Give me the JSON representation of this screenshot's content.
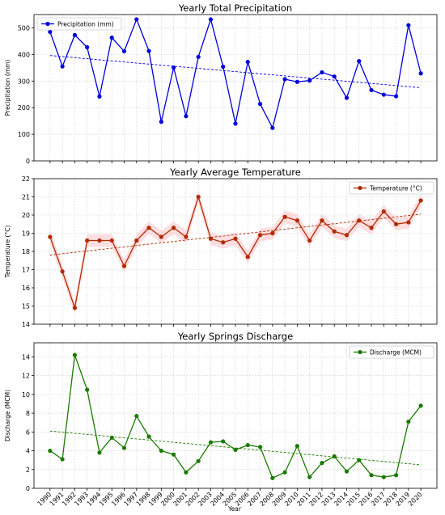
{
  "figure": {
    "xlabel": "Year"
  },
  "chart_data": [
    {
      "type": "line",
      "title": "Yearly Total Precipitation",
      "ylabel": "Precipitation (mm)",
      "legend": "Precipitation (mm)",
      "legend_position": "top-left",
      "color": "#0000dd",
      "grid": true,
      "ylim": [
        0,
        550
      ],
      "yticks": [
        0,
        100,
        200,
        300,
        400,
        500
      ],
      "x": [
        1990,
        1991,
        1992,
        1993,
        1994,
        1995,
        1996,
        1997,
        1998,
        1999,
        2000,
        2001,
        2002,
        2003,
        2004,
        2005,
        2006,
        2007,
        2008,
        2009,
        2010,
        2011,
        2012,
        2013,
        2014,
        2015,
        2016,
        2017,
        2018,
        2019,
        2020
      ],
      "values": [
        485,
        355,
        473,
        427,
        242,
        463,
        412,
        532,
        413,
        147,
        351,
        168,
        391,
        532,
        354,
        140,
        372,
        214,
        124,
        307,
        297,
        302,
        333,
        317,
        237,
        375,
        266,
        249,
        243,
        510,
        329
      ],
      "trend": [
        396,
        275
      ],
      "band": false
    },
    {
      "type": "line",
      "title": "Yearly Average Temperature",
      "ylabel": "Temperature (°C)",
      "legend": "Temperature (°C)",
      "legend_position": "top-right",
      "color": "#b22a00",
      "grid": true,
      "ylim": [
        14,
        22
      ],
      "yticks": [
        14,
        15,
        16,
        17,
        18,
        19,
        20,
        21,
        22
      ],
      "x": [
        1990,
        1991,
        1992,
        1993,
        1994,
        1995,
        1996,
        1997,
        1998,
        1999,
        2000,
        2001,
        2002,
        2003,
        2004,
        2005,
        2006,
        2007,
        2008,
        2009,
        2010,
        2011,
        2012,
        2013,
        2014,
        2015,
        2016,
        2017,
        2018,
        2019,
        2020
      ],
      "values": [
        18.8,
        16.9,
        14.9,
        18.6,
        18.6,
        18.6,
        17.2,
        18.6,
        19.3,
        18.8,
        19.3,
        18.8,
        21.0,
        18.7,
        18.5,
        18.7,
        17.7,
        18.9,
        19.0,
        19.9,
        19.7,
        18.6,
        19.7,
        19.1,
        18.9,
        19.7,
        19.3,
        20.2,
        19.5,
        19.6,
        20.8
      ],
      "trend": [
        17.8,
        20.05
      ],
      "band": true
    },
    {
      "type": "line",
      "title": "Yearly Springs Discharge",
      "ylabel": "Discharge (MCM)",
      "legend": "Discharge (MCM)",
      "legend_position": "top-right",
      "color": "#1a7a00",
      "grid": true,
      "ylim": [
        0,
        15.5
      ],
      "yticks": [
        0,
        2,
        4,
        6,
        8,
        10,
        12,
        14
      ],
      "x": [
        1990,
        1991,
        1992,
        1993,
        1994,
        1995,
        1996,
        1997,
        1998,
        1999,
        2000,
        2001,
        2002,
        2003,
        2004,
        2005,
        2006,
        2007,
        2008,
        2009,
        2010,
        2011,
        2012,
        2013,
        2014,
        2015,
        2016,
        2017,
        2018,
        2019,
        2020
      ],
      "values": [
        4.0,
        3.1,
        14.2,
        10.5,
        3.8,
        5.4,
        4.3,
        7.7,
        5.5,
        4.0,
        3.6,
        1.7,
        2.9,
        4.9,
        5.0,
        4.1,
        4.6,
        4.4,
        1.1,
        1.7,
        4.5,
        1.2,
        2.7,
        3.4,
        1.8,
        3.0,
        1.4,
        1.2,
        1.4,
        7.1,
        8.8
      ],
      "trend": [
        6.1,
        2.5
      ],
      "band": false
    }
  ]
}
